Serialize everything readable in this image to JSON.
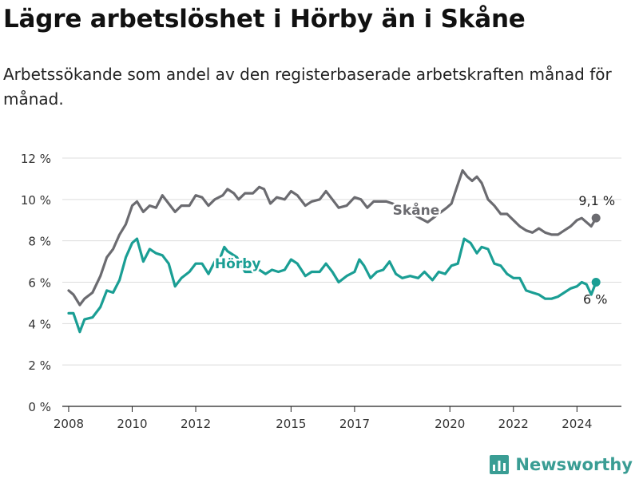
{
  "title": "Lägre arbetslöshet i Hörby än i Skåne",
  "subtitle": "Arbetssökande som andel av den registerbaserade arbetskraften månad för månad.",
  "brand": {
    "name": "Newsworthy",
    "icon": "bar-chart-icon",
    "color": "#3a9d94"
  },
  "chart_data": {
    "type": "line",
    "title": "",
    "xlabel": "",
    "ylabel": "",
    "xlim": [
      2007.8,
      2025.4
    ],
    "ylim": [
      0,
      12
    ],
    "yticks": [
      0,
      2,
      4,
      6,
      8,
      10,
      12
    ],
    "ytick_labels": [
      "0 %",
      "2 %",
      "4 %",
      "6 %",
      "8 %",
      "10 %",
      "12 %"
    ],
    "xticks": [
      2008,
      2010,
      2012,
      2015,
      2017,
      2020,
      2022,
      2024
    ],
    "xtick_labels": [
      "2008",
      "2010",
      "2012",
      "2015",
      "2017",
      "2020",
      "2022",
      "2024"
    ],
    "grid": "horizontal",
    "series": [
      {
        "name": "Skåne",
        "color": "#6b6b70",
        "end_label": "9,1 %",
        "points": [
          [
            2008.0,
            5.6
          ],
          [
            2008.15,
            5.4
          ],
          [
            2008.35,
            4.9
          ],
          [
            2008.5,
            5.2
          ],
          [
            2008.75,
            5.5
          ],
          [
            2009.0,
            6.3
          ],
          [
            2009.2,
            7.2
          ],
          [
            2009.4,
            7.6
          ],
          [
            2009.6,
            8.3
          ],
          [
            2009.8,
            8.8
          ],
          [
            2010.0,
            9.7
          ],
          [
            2010.15,
            9.9
          ],
          [
            2010.35,
            9.4
          ],
          [
            2010.55,
            9.7
          ],
          [
            2010.75,
            9.6
          ],
          [
            2010.95,
            10.2
          ],
          [
            2011.15,
            9.8
          ],
          [
            2011.35,
            9.4
          ],
          [
            2011.55,
            9.7
          ],
          [
            2011.8,
            9.7
          ],
          [
            2012.0,
            10.2
          ],
          [
            2012.2,
            10.1
          ],
          [
            2012.4,
            9.7
          ],
          [
            2012.6,
            10.0
          ],
          [
            2012.85,
            10.2
          ],
          [
            2013.0,
            10.5
          ],
          [
            2013.2,
            10.3
          ],
          [
            2013.35,
            10.0
          ],
          [
            2013.55,
            10.3
          ],
          [
            2013.8,
            10.3
          ],
          [
            2014.0,
            10.6
          ],
          [
            2014.15,
            10.5
          ],
          [
            2014.35,
            9.8
          ],
          [
            2014.55,
            10.1
          ],
          [
            2014.8,
            10.0
          ],
          [
            2015.0,
            10.4
          ],
          [
            2015.2,
            10.2
          ],
          [
            2015.45,
            9.7
          ],
          [
            2015.65,
            9.9
          ],
          [
            2015.9,
            10.0
          ],
          [
            2016.1,
            10.4
          ],
          [
            2016.3,
            10.0
          ],
          [
            2016.5,
            9.6
          ],
          [
            2016.75,
            9.7
          ],
          [
            2017.0,
            10.1
          ],
          [
            2017.2,
            10.0
          ],
          [
            2017.4,
            9.6
          ],
          [
            2017.6,
            9.9
          ],
          [
            2017.85,
            9.9
          ],
          [
            2018.0,
            9.9
          ],
          [
            2018.2,
            9.8
          ],
          [
            2019.3,
            8.9
          ],
          [
            2019.9,
            9.6
          ],
          [
            2020.05,
            9.8
          ],
          [
            2020.2,
            10.5
          ],
          [
            2020.4,
            11.4
          ],
          [
            2020.55,
            11.1
          ],
          [
            2020.7,
            10.9
          ],
          [
            2020.85,
            11.1
          ],
          [
            2021.0,
            10.8
          ],
          [
            2021.2,
            10.0
          ],
          [
            2021.4,
            9.7
          ],
          [
            2021.6,
            9.3
          ],
          [
            2021.8,
            9.3
          ],
          [
            2022.0,
            9.0
          ],
          [
            2022.2,
            8.7
          ],
          [
            2022.4,
            8.5
          ],
          [
            2022.6,
            8.4
          ],
          [
            2022.8,
            8.6
          ],
          [
            2023.0,
            8.4
          ],
          [
            2023.2,
            8.3
          ],
          [
            2023.4,
            8.3
          ],
          [
            2023.6,
            8.5
          ],
          [
            2023.8,
            8.7
          ],
          [
            2024.0,
            9.0
          ],
          [
            2024.15,
            9.1
          ],
          [
            2024.3,
            8.9
          ],
          [
            2024.45,
            8.7
          ],
          [
            2024.6,
            9.1
          ]
        ]
      },
      {
        "name": "Hörby",
        "color": "#1a9e94",
        "end_label": "6 %",
        "points": [
          [
            2008.0,
            4.5
          ],
          [
            2008.15,
            4.5
          ],
          [
            2008.35,
            3.6
          ],
          [
            2008.5,
            4.2
          ],
          [
            2008.75,
            4.3
          ],
          [
            2009.0,
            4.8
          ],
          [
            2009.2,
            5.6
          ],
          [
            2009.4,
            5.5
          ],
          [
            2009.6,
            6.1
          ],
          [
            2009.8,
            7.2
          ],
          [
            2010.0,
            7.9
          ],
          [
            2010.15,
            8.1
          ],
          [
            2010.35,
            7.0
          ],
          [
            2010.55,
            7.6
          ],
          [
            2010.75,
            7.4
          ],
          [
            2010.95,
            7.3
          ],
          [
            2011.15,
            6.9
          ],
          [
            2011.35,
            5.8
          ],
          [
            2011.55,
            6.2
          ],
          [
            2011.8,
            6.5
          ],
          [
            2012.0,
            6.9
          ],
          [
            2012.2,
            6.9
          ],
          [
            2012.4,
            6.4
          ],
          [
            2012.6,
            7.0
          ],
          [
            2012.75,
            7.1
          ],
          [
            2012.9,
            7.7
          ],
          [
            2013.0,
            7.5
          ],
          [
            2013.3,
            7.2
          ],
          [
            2013.55,
            6.5
          ],
          [
            2013.8,
            6.5
          ],
          [
            2014.0,
            6.6
          ],
          [
            2014.2,
            6.4
          ],
          [
            2014.4,
            6.6
          ],
          [
            2014.6,
            6.5
          ],
          [
            2014.8,
            6.6
          ],
          [
            2015.0,
            7.1
          ],
          [
            2015.2,
            6.9
          ],
          [
            2015.45,
            6.3
          ],
          [
            2015.65,
            6.5
          ],
          [
            2015.9,
            6.5
          ],
          [
            2016.1,
            6.9
          ],
          [
            2016.3,
            6.5
          ],
          [
            2016.5,
            6.0
          ],
          [
            2016.75,
            6.3
          ],
          [
            2017.0,
            6.5
          ],
          [
            2017.15,
            7.1
          ],
          [
            2017.3,
            6.8
          ],
          [
            2017.5,
            6.2
          ],
          [
            2017.7,
            6.5
          ],
          [
            2017.9,
            6.6
          ],
          [
            2018.1,
            7.0
          ],
          [
            2018.3,
            6.4
          ],
          [
            2018.5,
            6.2
          ],
          [
            2018.75,
            6.3
          ],
          [
            2019.0,
            6.2
          ],
          [
            2019.2,
            6.5
          ],
          [
            2019.45,
            6.1
          ],
          [
            2019.65,
            6.5
          ],
          [
            2019.85,
            6.4
          ],
          [
            2020.05,
            6.8
          ],
          [
            2020.25,
            6.9
          ],
          [
            2020.45,
            8.1
          ],
          [
            2020.65,
            7.9
          ],
          [
            2020.85,
            7.4
          ],
          [
            2021.0,
            7.7
          ],
          [
            2021.2,
            7.6
          ],
          [
            2021.4,
            6.9
          ],
          [
            2021.6,
            6.8
          ],
          [
            2021.8,
            6.4
          ],
          [
            2022.0,
            6.2
          ],
          [
            2022.2,
            6.2
          ],
          [
            2022.4,
            5.6
          ],
          [
            2022.6,
            5.5
          ],
          [
            2022.8,
            5.4
          ],
          [
            2023.0,
            5.2
          ],
          [
            2023.2,
            5.2
          ],
          [
            2023.4,
            5.3
          ],
          [
            2023.6,
            5.5
          ],
          [
            2023.8,
            5.7
          ],
          [
            2024.0,
            5.8
          ],
          [
            2024.15,
            6.0
          ],
          [
            2024.3,
            5.9
          ],
          [
            2024.45,
            5.4
          ],
          [
            2024.6,
            6.0
          ]
        ]
      }
    ]
  }
}
